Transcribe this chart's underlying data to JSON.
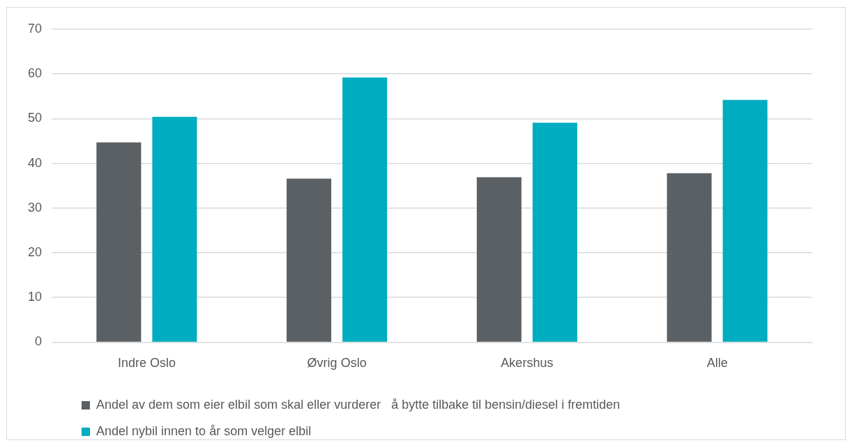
{
  "chart_data": {
    "type": "bar",
    "categories": [
      "Indre Oslo",
      "Øvrig Oslo",
      "Akershus",
      "Alle"
    ],
    "series": [
      {
        "name": "Andel av dem som eier elbil som skal eller vurderer   å bytte tilbake til bensin/diesel i fremtiden",
        "color": "#5b6064",
        "values": [
          44.7,
          36.6,
          36.9,
          37.8
        ]
      },
      {
        "name": "Andel nybil innen to år som velger elbil",
        "color": "#00acbf",
        "values": [
          50.4,
          59.2,
          49.1,
          54.2
        ]
      }
    ],
    "ylim": [
      0,
      70
    ],
    "yticks": [
      0,
      10,
      20,
      30,
      40,
      50,
      60,
      70
    ],
    "grid": "y",
    "legend": "bottom left"
  }
}
